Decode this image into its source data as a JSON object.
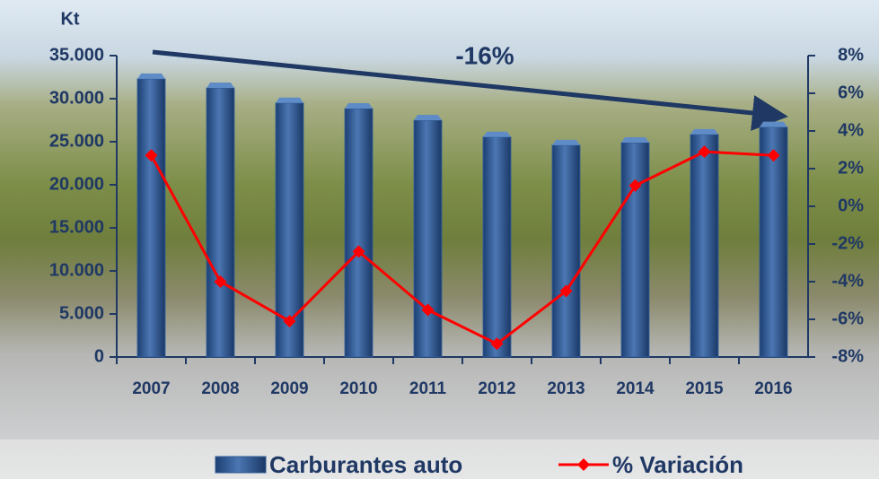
{
  "chart_data": {
    "type": "bar-line",
    "y_label": "Kt",
    "annotation": "-16%",
    "categories": [
      "2007",
      "2008",
      "2009",
      "2010",
      "2011",
      "2012",
      "2013",
      "2014",
      "2015",
      "2016"
    ],
    "series": [
      {
        "name": "Carburantes auto",
        "type": "bar",
        "color": "#2e5a94",
        "values": [
          32300,
          31250,
          29500,
          28850,
          27500,
          25550,
          24600,
          24900,
          25850,
          26700
        ]
      },
      {
        "name": "% Variación",
        "type": "line",
        "axis": "y2",
        "color": "#ff0000",
        "values": [
          2.7,
          -4.0,
          -6.1,
          -2.4,
          -5.5,
          -7.3,
          -4.5,
          1.1,
          2.9,
          2.7
        ]
      }
    ],
    "ylim": [
      0,
      35000
    ],
    "yticks": [
      0,
      {
        "value": 5000,
        "label": "5.000"
      },
      {
        "value": 10000,
        "label": "10.000"
      },
      {
        "value": 15000,
        "label": "15.000"
      },
      {
        "value": 20000,
        "label": "20.000"
      },
      {
        "value": 25000,
        "label": "25.000"
      },
      {
        "value": 30000,
        "label": "30.000"
      },
      {
        "value": 35000,
        "label": "35.000"
      }
    ],
    "y2lim": [
      -8,
      8
    ],
    "y2ticks": [
      {
        "value": -8,
        "label": "-8%"
      },
      {
        "value": -6,
        "label": "-6%"
      },
      {
        "value": -4,
        "label": "-4%"
      },
      {
        "value": -2,
        "label": "-2%"
      },
      {
        "value": 0,
        "label": "0%"
      },
      {
        "value": 2,
        "label": "2%"
      },
      {
        "value": 4,
        "label": "4%"
      },
      {
        "value": 6,
        "label": "6%"
      },
      {
        "value": 8,
        "label": "8%"
      }
    ]
  }
}
